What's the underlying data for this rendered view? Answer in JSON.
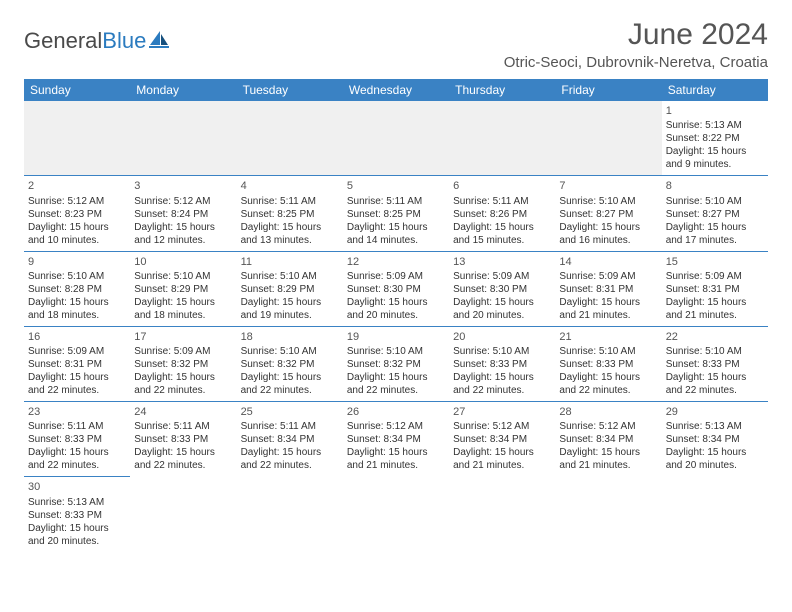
{
  "logo": {
    "general": "General",
    "blue": "Blue"
  },
  "title": "June 2024",
  "location": "Otric-Seoci, Dubrovnik-Neretva, Croatia",
  "colors": {
    "header_bg": "#3a82c4",
    "header_fg": "#ffffff",
    "border": "#3a82c4",
    "text": "#333333",
    "title": "#555555"
  },
  "weekdays": [
    "Sunday",
    "Monday",
    "Tuesday",
    "Wednesday",
    "Thursday",
    "Friday",
    "Saturday"
  ],
  "weeks": [
    [
      null,
      null,
      null,
      null,
      null,
      null,
      {
        "n": "1",
        "sunrise": "Sunrise: 5:13 AM",
        "sunset": "Sunset: 8:22 PM",
        "d1": "Daylight: 15 hours",
        "d2": "and 9 minutes."
      }
    ],
    [
      {
        "n": "2",
        "sunrise": "Sunrise: 5:12 AM",
        "sunset": "Sunset: 8:23 PM",
        "d1": "Daylight: 15 hours",
        "d2": "and 10 minutes."
      },
      {
        "n": "3",
        "sunrise": "Sunrise: 5:12 AM",
        "sunset": "Sunset: 8:24 PM",
        "d1": "Daylight: 15 hours",
        "d2": "and 12 minutes."
      },
      {
        "n": "4",
        "sunrise": "Sunrise: 5:11 AM",
        "sunset": "Sunset: 8:25 PM",
        "d1": "Daylight: 15 hours",
        "d2": "and 13 minutes."
      },
      {
        "n": "5",
        "sunrise": "Sunrise: 5:11 AM",
        "sunset": "Sunset: 8:25 PM",
        "d1": "Daylight: 15 hours",
        "d2": "and 14 minutes."
      },
      {
        "n": "6",
        "sunrise": "Sunrise: 5:11 AM",
        "sunset": "Sunset: 8:26 PM",
        "d1": "Daylight: 15 hours",
        "d2": "and 15 minutes."
      },
      {
        "n": "7",
        "sunrise": "Sunrise: 5:10 AM",
        "sunset": "Sunset: 8:27 PM",
        "d1": "Daylight: 15 hours",
        "d2": "and 16 minutes."
      },
      {
        "n": "8",
        "sunrise": "Sunrise: 5:10 AM",
        "sunset": "Sunset: 8:27 PM",
        "d1": "Daylight: 15 hours",
        "d2": "and 17 minutes."
      }
    ],
    [
      {
        "n": "9",
        "sunrise": "Sunrise: 5:10 AM",
        "sunset": "Sunset: 8:28 PM",
        "d1": "Daylight: 15 hours",
        "d2": "and 18 minutes."
      },
      {
        "n": "10",
        "sunrise": "Sunrise: 5:10 AM",
        "sunset": "Sunset: 8:29 PM",
        "d1": "Daylight: 15 hours",
        "d2": "and 18 minutes."
      },
      {
        "n": "11",
        "sunrise": "Sunrise: 5:10 AM",
        "sunset": "Sunset: 8:29 PM",
        "d1": "Daylight: 15 hours",
        "d2": "and 19 minutes."
      },
      {
        "n": "12",
        "sunrise": "Sunrise: 5:09 AM",
        "sunset": "Sunset: 8:30 PM",
        "d1": "Daylight: 15 hours",
        "d2": "and 20 minutes."
      },
      {
        "n": "13",
        "sunrise": "Sunrise: 5:09 AM",
        "sunset": "Sunset: 8:30 PM",
        "d1": "Daylight: 15 hours",
        "d2": "and 20 minutes."
      },
      {
        "n": "14",
        "sunrise": "Sunrise: 5:09 AM",
        "sunset": "Sunset: 8:31 PM",
        "d1": "Daylight: 15 hours",
        "d2": "and 21 minutes."
      },
      {
        "n": "15",
        "sunrise": "Sunrise: 5:09 AM",
        "sunset": "Sunset: 8:31 PM",
        "d1": "Daylight: 15 hours",
        "d2": "and 21 minutes."
      }
    ],
    [
      {
        "n": "16",
        "sunrise": "Sunrise: 5:09 AM",
        "sunset": "Sunset: 8:31 PM",
        "d1": "Daylight: 15 hours",
        "d2": "and 22 minutes."
      },
      {
        "n": "17",
        "sunrise": "Sunrise: 5:09 AM",
        "sunset": "Sunset: 8:32 PM",
        "d1": "Daylight: 15 hours",
        "d2": "and 22 minutes."
      },
      {
        "n": "18",
        "sunrise": "Sunrise: 5:10 AM",
        "sunset": "Sunset: 8:32 PM",
        "d1": "Daylight: 15 hours",
        "d2": "and 22 minutes."
      },
      {
        "n": "19",
        "sunrise": "Sunrise: 5:10 AM",
        "sunset": "Sunset: 8:32 PM",
        "d1": "Daylight: 15 hours",
        "d2": "and 22 minutes."
      },
      {
        "n": "20",
        "sunrise": "Sunrise: 5:10 AM",
        "sunset": "Sunset: 8:33 PM",
        "d1": "Daylight: 15 hours",
        "d2": "and 22 minutes."
      },
      {
        "n": "21",
        "sunrise": "Sunrise: 5:10 AM",
        "sunset": "Sunset: 8:33 PM",
        "d1": "Daylight: 15 hours",
        "d2": "and 22 minutes."
      },
      {
        "n": "22",
        "sunrise": "Sunrise: 5:10 AM",
        "sunset": "Sunset: 8:33 PM",
        "d1": "Daylight: 15 hours",
        "d2": "and 22 minutes."
      }
    ],
    [
      {
        "n": "23",
        "sunrise": "Sunrise: 5:11 AM",
        "sunset": "Sunset: 8:33 PM",
        "d1": "Daylight: 15 hours",
        "d2": "and 22 minutes."
      },
      {
        "n": "24",
        "sunrise": "Sunrise: 5:11 AM",
        "sunset": "Sunset: 8:33 PM",
        "d1": "Daylight: 15 hours",
        "d2": "and 22 minutes."
      },
      {
        "n": "25",
        "sunrise": "Sunrise: 5:11 AM",
        "sunset": "Sunset: 8:34 PM",
        "d1": "Daylight: 15 hours",
        "d2": "and 22 minutes."
      },
      {
        "n": "26",
        "sunrise": "Sunrise: 5:12 AM",
        "sunset": "Sunset: 8:34 PM",
        "d1": "Daylight: 15 hours",
        "d2": "and 21 minutes."
      },
      {
        "n": "27",
        "sunrise": "Sunrise: 5:12 AM",
        "sunset": "Sunset: 8:34 PM",
        "d1": "Daylight: 15 hours",
        "d2": "and 21 minutes."
      },
      {
        "n": "28",
        "sunrise": "Sunrise: 5:12 AM",
        "sunset": "Sunset: 8:34 PM",
        "d1": "Daylight: 15 hours",
        "d2": "and 21 minutes."
      },
      {
        "n": "29",
        "sunrise": "Sunrise: 5:13 AM",
        "sunset": "Sunset: 8:34 PM",
        "d1": "Daylight: 15 hours",
        "d2": "and 20 minutes."
      }
    ],
    [
      {
        "n": "30",
        "sunrise": "Sunrise: 5:13 AM",
        "sunset": "Sunset: 8:33 PM",
        "d1": "Daylight: 15 hours",
        "d2": "and 20 minutes."
      },
      null,
      null,
      null,
      null,
      null,
      null
    ]
  ]
}
